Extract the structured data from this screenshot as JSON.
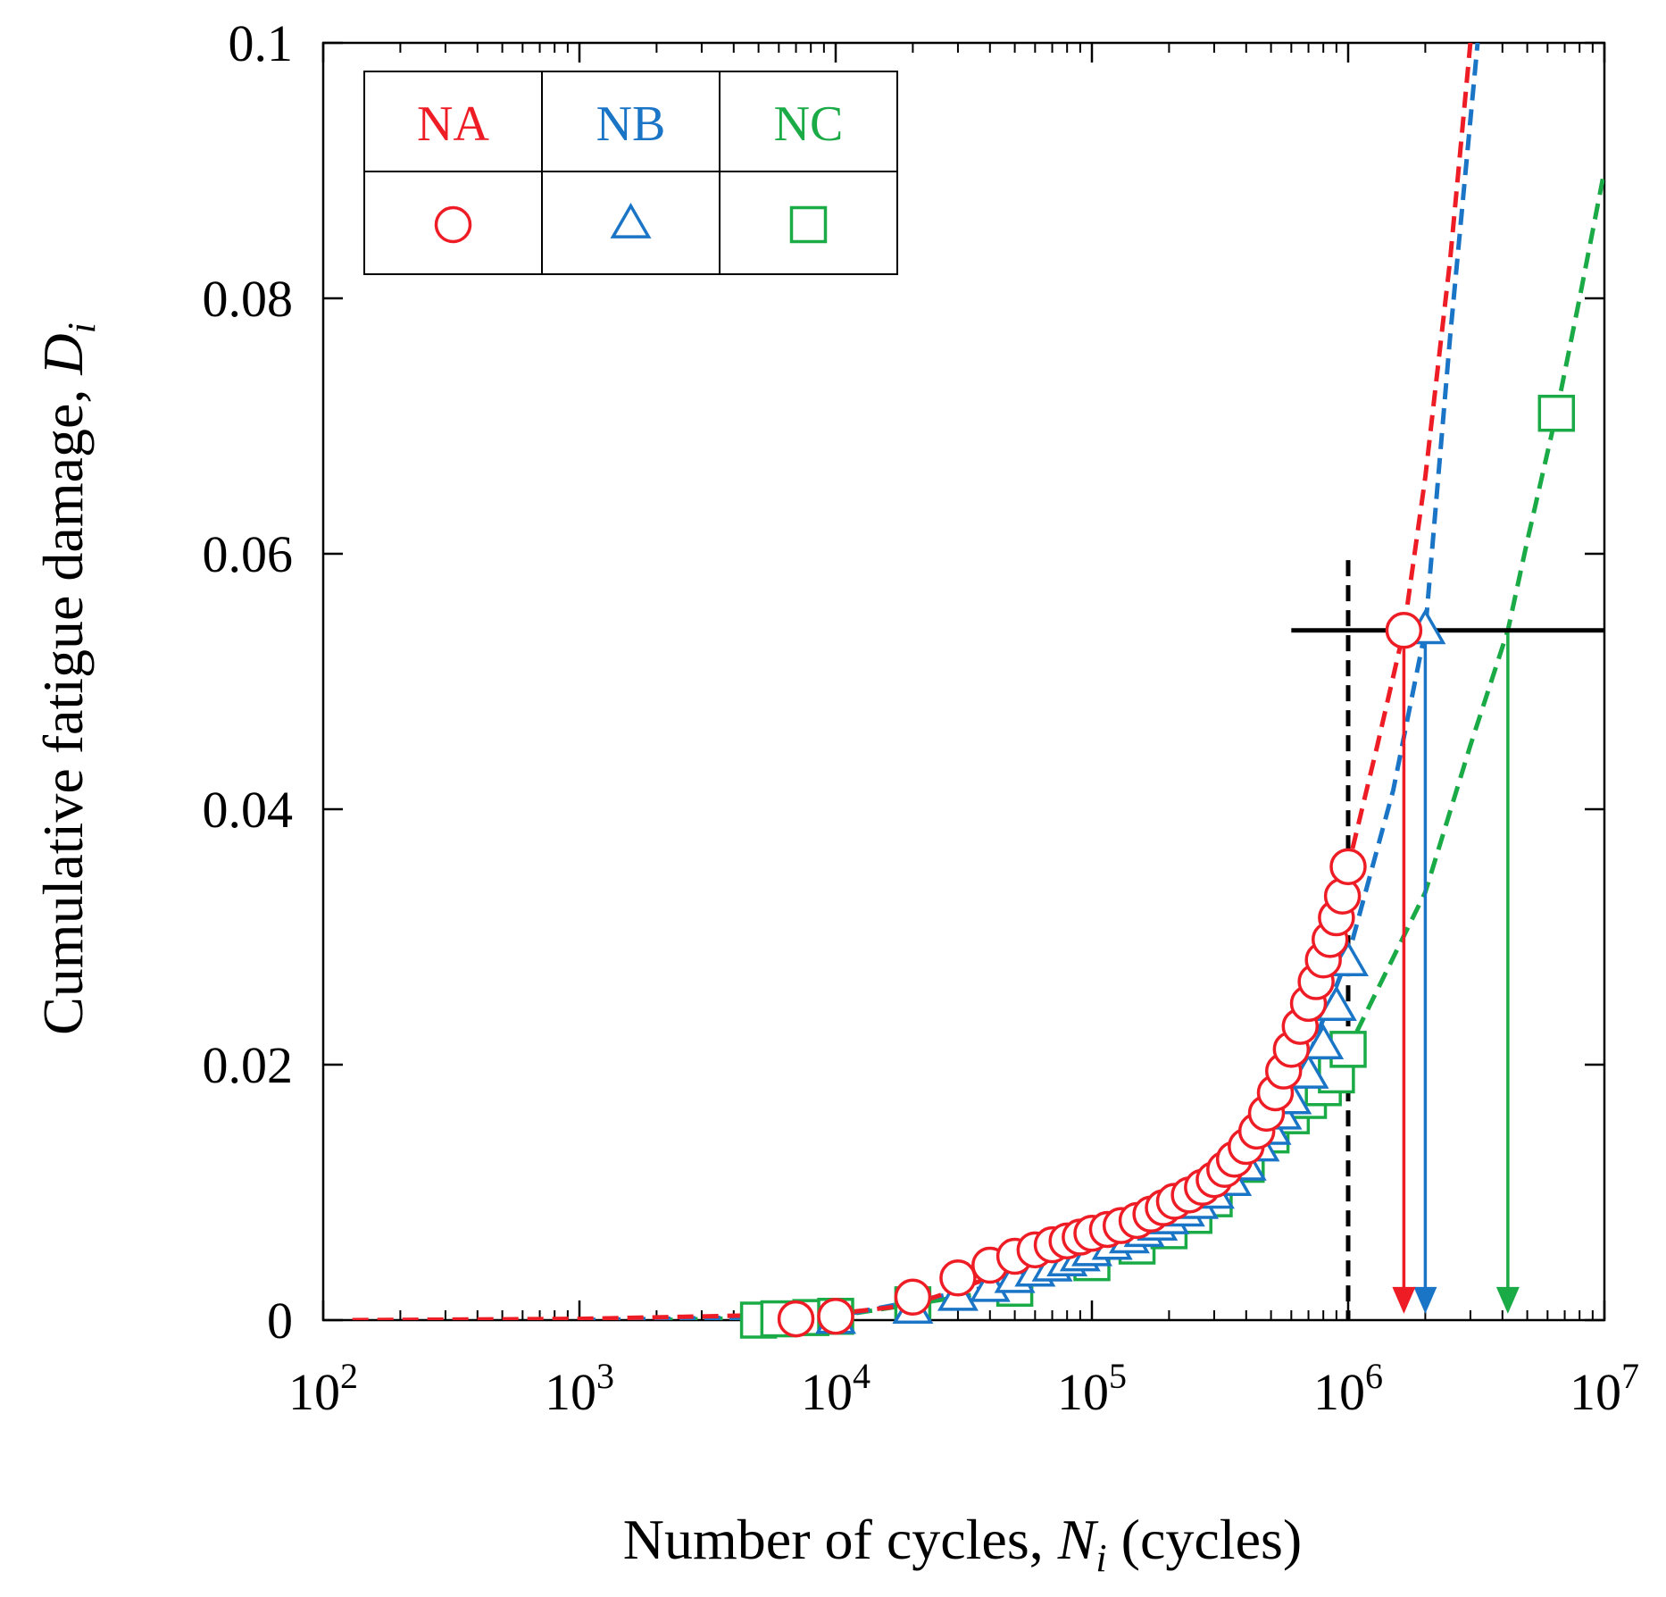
{
  "chart_data": {
    "type": "scatter",
    "x_scale": "log",
    "xlim": [
      100,
      10000000
    ],
    "ylim": [
      0,
      0.1
    ],
    "xlabel": {
      "main": "Number of cycles, ",
      "var": "N",
      "sub": "i",
      "unit": " (cycles)"
    },
    "ylabel": {
      "main": "Cumulative fatigue damage, ",
      "var": "D",
      "sub": "i"
    },
    "x_ticks": [
      {
        "value": 100,
        "base": "10",
        "exp": "2"
      },
      {
        "value": 1000,
        "base": "10",
        "exp": "3"
      },
      {
        "value": 10000,
        "base": "10",
        "exp": "4"
      },
      {
        "value": 100000,
        "base": "10",
        "exp": "5"
      },
      {
        "value": 1000000,
        "base": "10",
        "exp": "6"
      },
      {
        "value": 10000000,
        "base": "10",
        "exp": "7"
      }
    ],
    "y_ticks": [
      {
        "value": 0,
        "label": "0"
      },
      {
        "value": 0.02,
        "label": "0.02"
      },
      {
        "value": 0.04,
        "label": "0.04"
      },
      {
        "value": 0.06,
        "label": "0.06"
      },
      {
        "value": 0.08,
        "label": "0.08"
      },
      {
        "value": 0.1,
        "label": "0.1"
      }
    ],
    "legend": {
      "placement": "top-left",
      "style": "table"
    },
    "reference_lines": {
      "vertical_dashed_x": 1000000,
      "vertical_dashed_ymax": 0.0595,
      "horizontal_y": 0.054,
      "horizontal_xmin": 600000
    },
    "series": [
      {
        "name": "NA",
        "color": "#ee1c25",
        "marker": "circle",
        "points": [
          [
            7000,
            0.0001
          ],
          [
            10000,
            0.0003
          ],
          [
            20000,
            0.0018
          ],
          [
            30000,
            0.0033
          ],
          [
            40000,
            0.0043
          ],
          [
            50000,
            0.005
          ],
          [
            60000,
            0.0055
          ],
          [
            70000,
            0.0059
          ],
          [
            80000,
            0.0062
          ],
          [
            90000,
            0.0065
          ],
          [
            100000,
            0.0068
          ],
          [
            115000,
            0.0071
          ],
          [
            130000,
            0.0074
          ],
          [
            150000,
            0.0078
          ],
          [
            170000,
            0.0083
          ],
          [
            190000,
            0.0088
          ],
          [
            210000,
            0.0093
          ],
          [
            240000,
            0.0098
          ],
          [
            270000,
            0.0104
          ],
          [
            300000,
            0.011
          ],
          [
            330000,
            0.0118
          ],
          [
            360000,
            0.0126
          ],
          [
            400000,
            0.0136
          ],
          [
            440000,
            0.0148
          ],
          [
            480000,
            0.0162
          ],
          [
            520000,
            0.0178
          ],
          [
            560000,
            0.0195
          ],
          [
            600000,
            0.0212
          ],
          [
            650000,
            0.023
          ],
          [
            700000,
            0.0248
          ],
          [
            750000,
            0.0265
          ],
          [
            800000,
            0.0282
          ],
          [
            850000,
            0.0298
          ],
          [
            900000,
            0.0315
          ],
          [
            950000,
            0.0332
          ],
          [
            1000000,
            0.0355
          ],
          [
            1650000,
            0.054
          ]
        ],
        "curve": [
          [
            130,
            0
          ],
          [
            1000,
            0.0001
          ],
          [
            10000,
            0.0005
          ],
          [
            20000,
            0.0012
          ],
          [
            50000,
            0.004
          ],
          [
            100000,
            0.0065
          ],
          [
            200000,
            0.0092
          ],
          [
            400000,
            0.0135
          ],
          [
            700000,
            0.0245
          ],
          [
            1000000,
            0.0355
          ],
          [
            1300000,
            0.045
          ],
          [
            1650000,
            0.054
          ],
          [
            2000000,
            0.066
          ],
          [
            2500000,
            0.083
          ],
          [
            3000000,
            0.1
          ]
        ],
        "projection": {
          "x": 1650000,
          "y_from": 0.054,
          "y_to": 0.0005
        }
      },
      {
        "name": "NB",
        "color": "#1a75c7",
        "marker": "triangle",
        "points": [
          [
            10000,
            0.0
          ],
          [
            20000,
            0.0008
          ],
          [
            30000,
            0.0018
          ],
          [
            40000,
            0.0025
          ],
          [
            50000,
            0.0032
          ],
          [
            60000,
            0.0037
          ],
          [
            70000,
            0.0041
          ],
          [
            80000,
            0.0045
          ],
          [
            90000,
            0.0049
          ],
          [
            100000,
            0.0053
          ],
          [
            120000,
            0.0058
          ],
          [
            140000,
            0.0063
          ],
          [
            160000,
            0.0068
          ],
          [
            180000,
            0.0073
          ],
          [
            200000,
            0.0078
          ],
          [
            230000,
            0.0084
          ],
          [
            260000,
            0.009
          ],
          [
            300000,
            0.0098
          ],
          [
            350000,
            0.0108
          ],
          [
            400000,
            0.012
          ],
          [
            450000,
            0.0135
          ],
          [
            500000,
            0.0148
          ],
          [
            550000,
            0.016
          ],
          [
            600000,
            0.0172
          ],
          [
            700000,
            0.0192
          ],
          [
            800000,
            0.0215
          ],
          [
            900000,
            0.0245
          ],
          [
            1000000,
            0.028
          ],
          [
            2000000,
            0.054
          ]
        ],
        "curve": [
          [
            1000,
            0.0
          ],
          [
            10000,
            0.0003
          ],
          [
            50000,
            0.003
          ],
          [
            100000,
            0.0053
          ],
          [
            300000,
            0.0098
          ],
          [
            600000,
            0.0172
          ],
          [
            1000000,
            0.0285
          ],
          [
            1500000,
            0.0415
          ],
          [
            2000000,
            0.054
          ],
          [
            2500000,
            0.077
          ],
          [
            3200000,
            0.1
          ]
        ],
        "projection": {
          "x": 2000000,
          "y_from": 0.054,
          "y_to": 0.0005
        }
      },
      {
        "name": "NC",
        "color": "#1aab47",
        "marker": "square",
        "points": [
          [
            5000,
            0.0
          ],
          [
            6000,
            0.0001
          ],
          [
            8000,
            0.0002
          ],
          [
            10000,
            0.0003
          ],
          [
            20000,
            0.0012
          ],
          [
            50000,
            0.0025
          ],
          [
            100000,
            0.0045
          ],
          [
            150000,
            0.0058
          ],
          [
            200000,
            0.007
          ],
          [
            250000,
            0.0082
          ],
          [
            300000,
            0.0095
          ],
          [
            400000,
            0.0122
          ],
          [
            500000,
            0.0145
          ],
          [
            600000,
            0.016
          ],
          [
            700000,
            0.0172
          ],
          [
            800000,
            0.0182
          ],
          [
            900000,
            0.0192
          ],
          [
            1000000,
            0.0212
          ],
          [
            6500000,
            0.071
          ]
        ],
        "curve": [
          [
            2000,
            0.0
          ],
          [
            10000,
            0.0003
          ],
          [
            50000,
            0.0025
          ],
          [
            100000,
            0.0045
          ],
          [
            300000,
            0.0095
          ],
          [
            600000,
            0.0158
          ],
          [
            1000000,
            0.0212
          ],
          [
            2000000,
            0.0335
          ],
          [
            3000000,
            0.045
          ],
          [
            4200000,
            0.054
          ],
          [
            5000000,
            0.061
          ],
          [
            6500000,
            0.071
          ],
          [
            8000000,
            0.08
          ],
          [
            10000000,
            0.09
          ]
        ],
        "projection": {
          "x": 4200000,
          "y_from": 0.054,
          "y_to": 0.0005
        }
      }
    ]
  }
}
